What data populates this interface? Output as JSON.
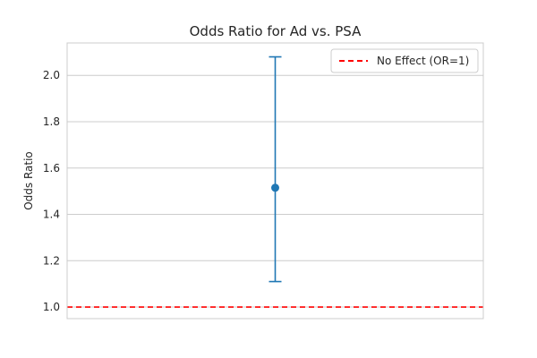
{
  "chart_data": {
    "type": "scatter",
    "title": "Odds Ratio for Ad vs. PSA",
    "xlabel": "",
    "ylabel": "Odds Ratio",
    "ylim": [
      0.95,
      2.14
    ],
    "yticks": [
      1.0,
      1.2,
      1.4,
      1.6,
      1.8,
      2.0
    ],
    "yticklabels": [
      "1.0",
      "1.2",
      "1.4",
      "1.6",
      "1.8",
      "2.0"
    ],
    "grid": "horizontal",
    "legend_position": "top-right",
    "point": {
      "value": 1.515,
      "ci_lower": 1.11,
      "ci_upper": 2.08,
      "color": "#1f77b4"
    },
    "reference_line": {
      "label": "No Effect (OR=1)",
      "value": 1.0,
      "color": "#ff0000",
      "style": "dashed"
    }
  }
}
